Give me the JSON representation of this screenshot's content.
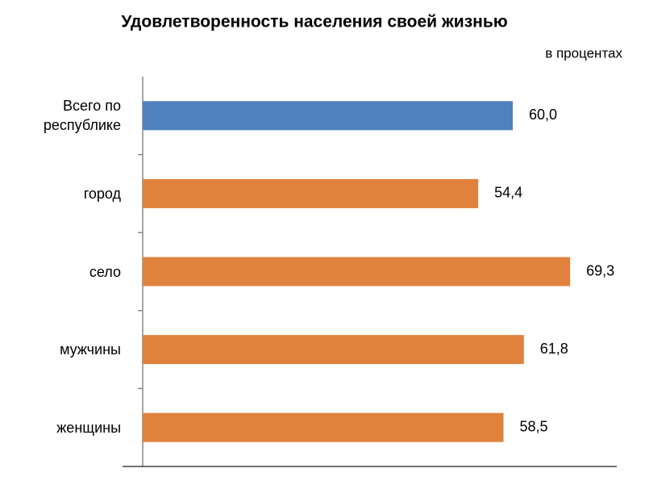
{
  "chart_data": {
    "type": "bar",
    "orientation": "horizontal",
    "title": "Удовлетворенность населения своей жизнью",
    "subtitle": "в процентах",
    "categories": [
      "Всего по республике",
      "город",
      "село",
      "мужчины",
      "женщины"
    ],
    "values": [
      60.0,
      54.4,
      69.3,
      61.8,
      58.5
    ],
    "value_labels": [
      "60,0",
      "54,4",
      "69,3",
      "61,8",
      "58,5"
    ],
    "colors": [
      "#4f81bd",
      "#e0823d",
      "#e0823d",
      "#e0823d",
      "#e0823d"
    ],
    "xlim": [
      0,
      80
    ]
  }
}
